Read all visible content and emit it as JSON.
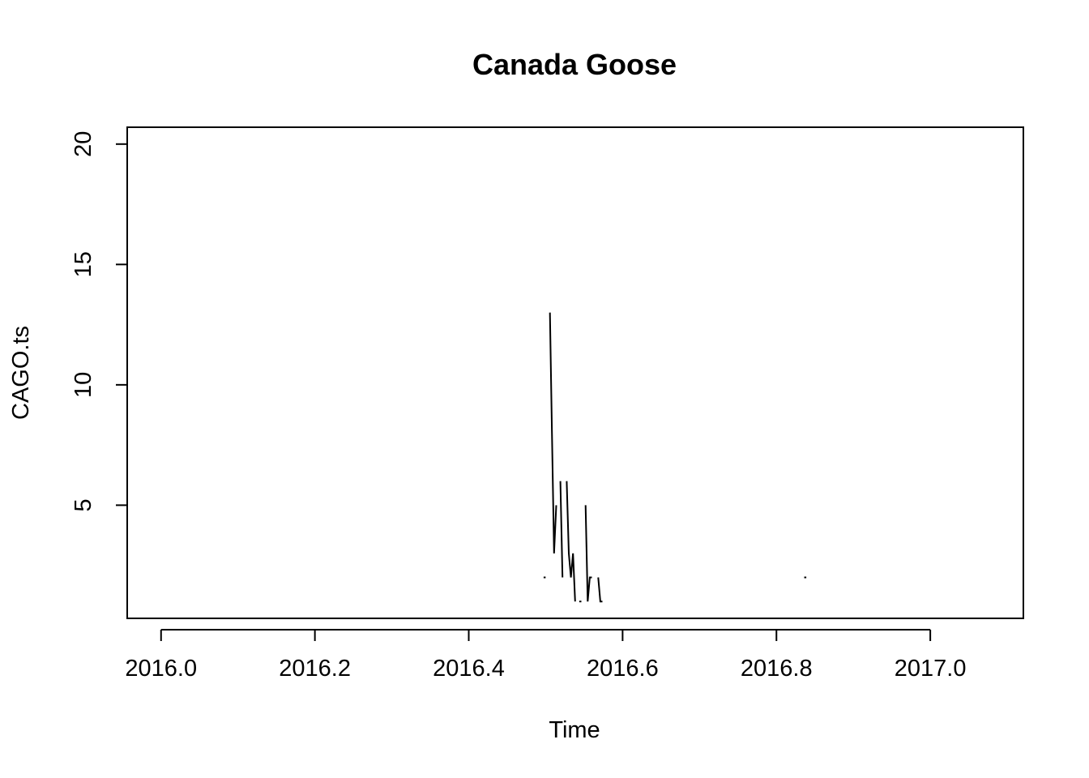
{
  "chart_data": {
    "type": "line",
    "title": "Canada Goose",
    "xlabel": "Time",
    "ylabel": "CAGO.ts",
    "xlim": [
      2015.956,
      2017.121
    ],
    "ylim": [
      0.3,
      20.7
    ],
    "x_ticks": [
      2016.0,
      2016.2,
      2016.4,
      2016.6,
      2016.8,
      2017.0
    ],
    "x_tick_labels": [
      "2016.0",
      "2016.2",
      "2016.4",
      "2016.6",
      "2016.8",
      "2017.0"
    ],
    "y_ticks": [
      5,
      10,
      15,
      20
    ],
    "y_tick_labels": [
      "5",
      "10",
      "15",
      "20"
    ],
    "grid": false,
    "legend": "none",
    "color": "#000000",
    "segments": [
      [
        [
          2016.4973,
          2
        ],
        [
          2016.5,
          2
        ]
      ],
      [
        [
          2016.5055,
          13
        ],
        [
          2016.5082,
          8
        ],
        [
          2016.5109,
          3
        ],
        [
          2016.5137,
          5
        ]
      ],
      [
        [
          2016.5191,
          6
        ],
        [
          2016.5219,
          2
        ]
      ],
      [
        [
          2016.5273,
          6
        ],
        [
          2016.5301,
          3
        ],
        [
          2016.5328,
          2
        ],
        [
          2016.5355,
          3
        ],
        [
          2016.5383,
          1
        ]
      ],
      [
        [
          2016.5437,
          1
        ],
        [
          2016.5464,
          1
        ]
      ],
      [
        [
          2016.5519,
          5
        ],
        [
          2016.5546,
          1
        ],
        [
          2016.5574,
          2
        ],
        [
          2016.5601,
          2
        ]
      ],
      [
        [
          2016.5683,
          2
        ],
        [
          2016.571,
          1
        ],
        [
          2016.5738,
          1
        ]
      ],
      [
        [
          2016.8361,
          2
        ],
        [
          2016.8388,
          2
        ]
      ]
    ]
  }
}
